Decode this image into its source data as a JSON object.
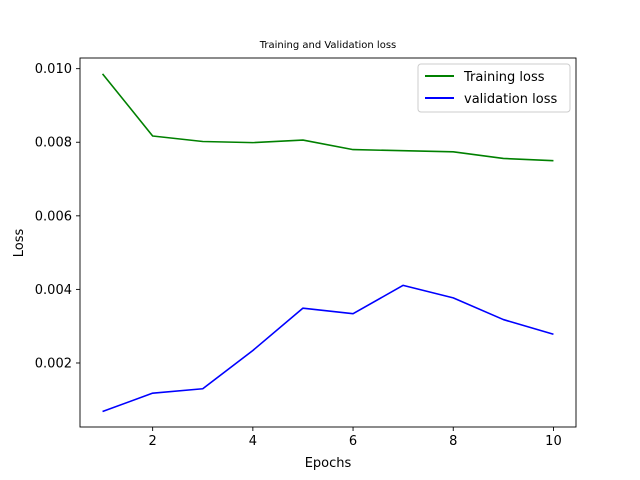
{
  "chart_data": {
    "type": "line",
    "title": "Training and Validation loss",
    "xlabel": "Epochs",
    "ylabel": "Loss",
    "x": [
      1,
      2,
      3,
      4,
      5,
      6,
      7,
      8,
      9,
      10
    ],
    "xlim": [
      0.55,
      10.45
    ],
    "ylim": [
      0.00026,
      0.01029
    ],
    "xticks": [
      2,
      4,
      6,
      8,
      10
    ],
    "xtick_labels": [
      "2",
      "4",
      "6",
      "8",
      "10"
    ],
    "yticks": [
      0.002,
      0.004,
      0.006,
      0.008,
      0.01
    ],
    "ytick_labels": [
      "0.002",
      "0.004",
      "0.006",
      "0.008",
      "0.010"
    ],
    "grid": false,
    "legend_position": "top-right",
    "series": [
      {
        "name": "Training loss",
        "color": "#008000",
        "values": [
          0.00986,
          0.00817,
          0.00802,
          0.00799,
          0.00806,
          0.0078,
          0.00777,
          0.00774,
          0.00756,
          0.0075
        ]
      },
      {
        "name": "validation loss",
        "color": "#0000ff",
        "values": [
          0.00068,
          0.00118,
          0.0013,
          0.00234,
          0.00349,
          0.00334,
          0.00411,
          0.00377,
          0.00318,
          0.00278
        ]
      }
    ]
  }
}
